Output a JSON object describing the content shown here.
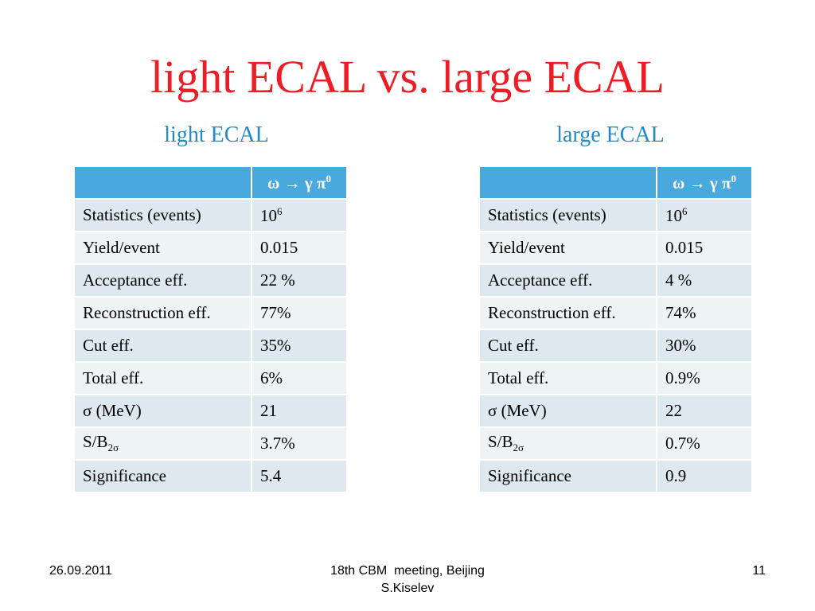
{
  "title": "light ECAL vs. large ECAL",
  "columns": [
    {
      "heading": "light ECAL",
      "header": {
        "blank": "",
        "decay": {
          "omega": "ω",
          "arrow": "→",
          "gamma": "γ",
          "pi": "π",
          "pi_sup": "0"
        }
      },
      "rows": [
        {
          "label": "Statistics (events)",
          "value_base": "10",
          "value_sup": "6"
        },
        {
          "label": "Yield/event",
          "value": "0.015"
        },
        {
          "label": "Acceptance eff.",
          "value": "22 %"
        },
        {
          "label": "Reconstruction eff.",
          "value": "77%"
        },
        {
          "label": "Cut eff.",
          "value": "35%"
        },
        {
          "label": "Total eff.",
          "value": "6%"
        },
        {
          "label": "σ (MeV)",
          "value": "21"
        },
        {
          "label_base": "S/B",
          "label_sub": "2σ",
          "value": "3.7%"
        },
        {
          "label": "Significance",
          "value": "5.4"
        }
      ]
    },
    {
      "heading": "large ECAL",
      "header": {
        "blank": "",
        "decay": {
          "omega": "ω",
          "arrow": "→",
          "gamma": "γ",
          "pi": "π",
          "pi_sup": "0"
        }
      },
      "rows": [
        {
          "label": "Statistics (events)",
          "value_base": "10",
          "value_sup": "6"
        },
        {
          "label": "Yield/event",
          "value": "0.015"
        },
        {
          "label": "Acceptance eff.",
          "value": "4 %"
        },
        {
          "label": "Reconstruction eff.",
          "value": "74%"
        },
        {
          "label": "Cut eff.",
          "value": "30%"
        },
        {
          "label": "Total eff.",
          "value": "0.9%"
        },
        {
          "label": "σ (MeV)",
          "value": "22"
        },
        {
          "label_base": "S/B",
          "label_sub": "2σ",
          "value": "0.7%"
        },
        {
          "label": "Significance",
          "value": "0.9"
        }
      ]
    }
  ],
  "footer": {
    "date": "26.09.2011",
    "event_line1": "18th CBM  meeting, Beijing",
    "event_line2": "S.Kiselev",
    "page": "11"
  },
  "colors": {
    "title": "#ee1c25",
    "heading": "#1f8bc9",
    "table_header": "#4aa9dc",
    "row_odd": "#dde8ef",
    "row_even": "#eef3f6"
  }
}
